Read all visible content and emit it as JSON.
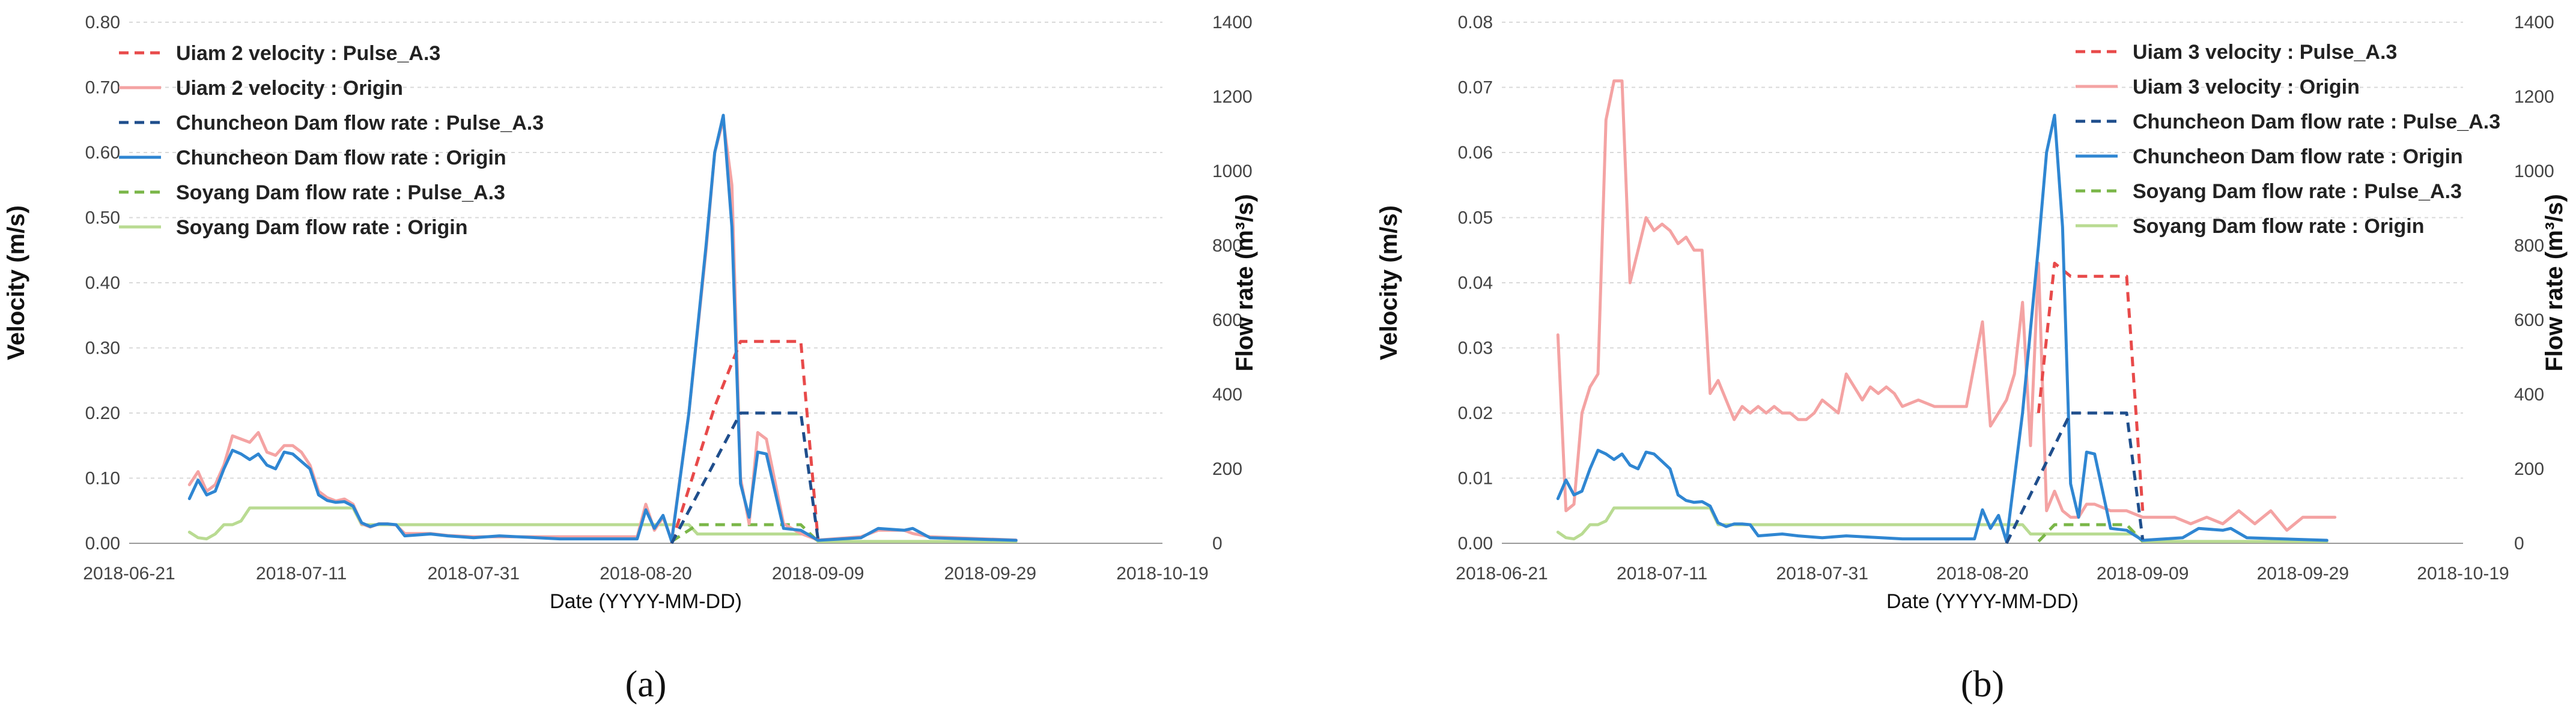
{
  "panel_labels": [
    "(a)",
    "(b)"
  ],
  "colors": {
    "uiam": "#E84A4A",
    "uiam_origin": "#F4A3A3",
    "chuncheon_pulse": "#1F4E8C",
    "chuncheon_origin": "#2F86D2",
    "soyang_pulse": "#7AB648",
    "soyang_origin": "#B9DB92",
    "grid": "#D9D9D9"
  },
  "chart_data": [
    {
      "type": "line",
      "panel": "(a)",
      "xlabel": "Date (YYYY-MM-DD)",
      "ylabel": "Velocity (m/s)",
      "y2label": "Flow rate (m³/s)",
      "xlim": [
        "2018-06-21",
        "2018-10-19"
      ],
      "xticks": [
        "2018-06-21",
        "2018-07-11",
        "2018-07-31",
        "2018-08-20",
        "2018-09-09",
        "2018-09-29",
        "2018-10-19"
      ],
      "ylim": [
        0,
        0.8
      ],
      "yticks": [
        "0.00",
        "0.10",
        "0.20",
        "0.30",
        "0.40",
        "0.50",
        "0.60",
        "0.70",
        "0.80"
      ],
      "y2lim": [
        0,
        1400
      ],
      "y2ticks": [
        "0",
        "200",
        "400",
        "600",
        "800",
        "1000",
        "1200",
        "1400"
      ],
      "grid": true,
      "legend_position": "top-left",
      "series": [
        {
          "name": "Uiam 2 velocity : Pulse_A.3",
          "axis": "left",
          "style": "dashed",
          "color_key": "uiam",
          "x": [
            "2018-08-23",
            "2018-08-28",
            "2018-08-31",
            "2018-09-07",
            "2018-09-09"
          ],
          "y": [
            0.0,
            0.21,
            0.31,
            0.31,
            0.005
          ]
        },
        {
          "name": "Uiam 2 velocity : Origin",
          "axis": "left",
          "style": "solid",
          "color_key": "uiam_origin",
          "x": [
            "2018-06-28",
            "2018-06-29",
            "2018-06-30",
            "2018-07-01",
            "2018-07-02",
            "2018-07-03",
            "2018-07-04",
            "2018-07-05",
            "2018-07-06",
            "2018-07-07",
            "2018-07-08",
            "2018-07-09",
            "2018-07-10",
            "2018-07-11",
            "2018-07-12",
            "2018-07-13",
            "2018-07-14",
            "2018-07-15",
            "2018-07-16",
            "2018-07-17",
            "2018-07-18",
            "2018-07-19",
            "2018-07-20",
            "2018-07-21",
            "2018-07-22",
            "2018-07-23",
            "2018-07-26",
            "2018-07-28",
            "2018-07-31",
            "2018-08-03",
            "2018-08-10",
            "2018-08-15",
            "2018-08-19",
            "2018-08-20",
            "2018-08-21",
            "2018-08-22",
            "2018-08-23",
            "2018-08-25",
            "2018-08-27",
            "2018-08-28",
            "2018-08-29",
            "2018-08-30",
            "2018-08-31",
            "2018-09-01",
            "2018-09-02",
            "2018-09-03",
            "2018-09-05",
            "2018-09-07",
            "2018-09-09",
            "2018-09-14",
            "2018-09-16",
            "2018-09-19",
            "2018-09-20",
            "2018-09-22",
            "2018-10-02"
          ],
          "y": [
            0.09,
            0.11,
            0.08,
            0.09,
            0.12,
            0.165,
            0.16,
            0.155,
            0.17,
            0.14,
            0.135,
            0.15,
            0.15,
            0.14,
            0.12,
            0.08,
            0.07,
            0.065,
            0.068,
            0.06,
            0.03,
            0.025,
            0.03,
            0.03,
            0.028,
            0.015,
            0.015,
            0.012,
            0.01,
            0.01,
            0.01,
            0.01,
            0.01,
            0.06,
            0.02,
            0.04,
            0.005,
            0.2,
            0.45,
            0.6,
            0.65,
            0.55,
            0.1,
            0.03,
            0.17,
            0.16,
            0.03,
            0.015,
            0.005,
            0.01,
            0.02,
            0.02,
            0.015,
            0.01,
            0.005
          ]
        },
        {
          "name": "Chuncheon Dam flow rate : Pulse_A.3",
          "axis": "right",
          "style": "dashed",
          "color_key": "chuncheon_pulse",
          "x": [
            "2018-08-23",
            "2018-08-31",
            "2018-09-07",
            "2018-09-09"
          ],
          "y": [
            0,
            350,
            350,
            10
          ]
        },
        {
          "name": "Chuncheon Dam flow rate : Origin",
          "axis": "right",
          "style": "solid",
          "color_key": "chuncheon_origin",
          "x": [
            "2018-06-28",
            "2018-06-29",
            "2018-06-30",
            "2018-07-01",
            "2018-07-02",
            "2018-07-03",
            "2018-07-04",
            "2018-07-05",
            "2018-07-06",
            "2018-07-07",
            "2018-07-08",
            "2018-07-09",
            "2018-07-10",
            "2018-07-11",
            "2018-07-12",
            "2018-07-13",
            "2018-07-14",
            "2018-07-15",
            "2018-07-16",
            "2018-07-17",
            "2018-07-18",
            "2018-07-19",
            "2018-07-20",
            "2018-07-21",
            "2018-07-22",
            "2018-07-23",
            "2018-07-26",
            "2018-07-28",
            "2018-07-31",
            "2018-08-03",
            "2018-08-10",
            "2018-08-15",
            "2018-08-19",
            "2018-08-20",
            "2018-08-21",
            "2018-08-22",
            "2018-08-23",
            "2018-08-25",
            "2018-08-27",
            "2018-08-28",
            "2018-08-29",
            "2018-08-30",
            "2018-08-31",
            "2018-09-01",
            "2018-09-02",
            "2018-09-03",
            "2018-09-05",
            "2018-09-07",
            "2018-09-09",
            "2018-09-14",
            "2018-09-16",
            "2018-09-19",
            "2018-09-20",
            "2018-09-22",
            "2018-10-02"
          ],
          "y": [
            120,
            170,
            130,
            140,
            200,
            250,
            240,
            225,
            240,
            210,
            200,
            245,
            240,
            220,
            200,
            130,
            115,
            110,
            112,
            100,
            55,
            45,
            52,
            52,
            50,
            20,
            25,
            20,
            15,
            20,
            12,
            12,
            12,
            90,
            40,
            75,
            5,
            350,
            800,
            1050,
            1150,
            850,
            160,
            70,
            245,
            240,
            40,
            35,
            8,
            15,
            40,
            35,
            40,
            15,
            8
          ]
        },
        {
          "name": "Soyang Dam flow rate : Pulse_A.3",
          "axis": "right",
          "style": "dashed",
          "color_key": "soyang_pulse",
          "x": [
            "2018-08-23",
            "2018-08-26",
            "2018-09-07",
            "2018-09-09"
          ],
          "y": [
            5,
            50,
            50,
            5
          ]
        },
        {
          "name": "Soyang Dam flow rate : Origin",
          "axis": "right",
          "style": "solid",
          "color_key": "soyang_origin",
          "x": [
            "2018-06-28",
            "2018-06-29",
            "2018-06-30",
            "2018-07-01",
            "2018-07-02",
            "2018-07-03",
            "2018-07-04",
            "2018-07-05",
            "2018-07-17",
            "2018-07-18",
            "2018-07-25",
            "2018-08-25",
            "2018-08-26",
            "2018-08-27",
            "2018-09-08",
            "2018-09-09",
            "2018-10-02"
          ],
          "y": [
            30,
            15,
            12,
            25,
            50,
            50,
            60,
            95,
            95,
            50,
            50,
            50,
            25,
            25,
            25,
            5,
            5
          ]
        }
      ]
    },
    {
      "type": "line",
      "panel": "(b)",
      "xlabel": "Date (YYYY-MM-DD)",
      "ylabel": "Velocity (m/s)",
      "y2label": "Flow rate (m³/s)",
      "xlim": [
        "2018-06-21",
        "2018-10-19"
      ],
      "xticks": [
        "2018-06-21",
        "2018-07-11",
        "2018-07-31",
        "2018-08-20",
        "2018-09-09",
        "2018-09-29",
        "2018-10-19"
      ],
      "ylim": [
        0,
        0.08
      ],
      "yticks": [
        "0.00",
        "0.01",
        "0.02",
        "0.03",
        "0.04",
        "0.05",
        "0.06",
        "0.07",
        "0.08"
      ],
      "y2lim": [
        0,
        1400
      ],
      "y2ticks": [
        "0",
        "200",
        "400",
        "600",
        "800",
        "1000",
        "1200",
        "1400"
      ],
      "grid": true,
      "legend_position": "top-right",
      "series": [
        {
          "name": "Uiam 3 velocity : Pulse_A.3",
          "axis": "left",
          "style": "dashed",
          "color_key": "uiam",
          "x": [
            "2018-08-27",
            "2018-08-29",
            "2018-08-31",
            "2018-09-07",
            "2018-09-09"
          ],
          "y": [
            0.02,
            0.043,
            0.041,
            0.041,
            0.005
          ]
        },
        {
          "name": "Uiam 3 velocity : Origin",
          "axis": "left",
          "style": "solid",
          "color_key": "uiam_origin",
          "x": [
            "2018-06-28",
            "2018-06-29",
            "2018-06-30",
            "2018-07-01",
            "2018-07-02",
            "2018-07-03",
            "2018-07-04",
            "2018-07-05",
            "2018-07-06",
            "2018-07-07",
            "2018-07-08",
            "2018-07-09",
            "2018-07-10",
            "2018-07-11",
            "2018-07-12",
            "2018-07-13",
            "2018-07-14",
            "2018-07-15",
            "2018-07-16",
            "2018-07-17",
            "2018-07-18",
            "2018-07-19",
            "2018-07-20",
            "2018-07-21",
            "2018-07-22",
            "2018-07-23",
            "2018-07-24",
            "2018-07-25",
            "2018-07-26",
            "2018-07-27",
            "2018-07-28",
            "2018-07-29",
            "2018-07-30",
            "2018-07-31",
            "2018-08-01",
            "2018-08-02",
            "2018-08-03",
            "2018-08-05",
            "2018-08-06",
            "2018-08-07",
            "2018-08-08",
            "2018-08-09",
            "2018-08-10",
            "2018-08-12",
            "2018-08-14",
            "2018-08-16",
            "2018-08-18",
            "2018-08-20",
            "2018-08-21",
            "2018-08-22",
            "2018-08-23",
            "2018-08-24",
            "2018-08-25",
            "2018-08-26",
            "2018-08-27",
            "2018-08-28",
            "2018-08-29",
            "2018-08-30",
            "2018-08-31",
            "2018-09-01",
            "2018-09-02",
            "2018-09-03",
            "2018-09-05",
            "2018-09-07",
            "2018-09-09",
            "2018-09-11",
            "2018-09-13",
            "2018-09-15",
            "2018-09-17",
            "2018-09-19",
            "2018-09-21",
            "2018-09-23",
            "2018-09-25",
            "2018-09-27",
            "2018-09-29",
            "2018-10-01",
            "2018-10-03"
          ],
          "y": [
            0.032,
            0.005,
            0.006,
            0.02,
            0.024,
            0.026,
            0.065,
            0.071,
            0.071,
            0.04,
            0.045,
            0.05,
            0.048,
            0.049,
            0.048,
            0.046,
            0.047,
            0.045,
            0.045,
            0.023,
            0.025,
            0.022,
            0.019,
            0.021,
            0.02,
            0.021,
            0.02,
            0.021,
            0.02,
            0.02,
            0.019,
            0.019,
            0.02,
            0.022,
            0.021,
            0.02,
            0.026,
            0.022,
            0.024,
            0.023,
            0.024,
            0.023,
            0.021,
            0.022,
            0.021,
            0.021,
            0.021,
            0.034,
            0.018,
            0.02,
            0.022,
            0.026,
            0.037,
            0.015,
            0.043,
            0.005,
            0.008,
            0.005,
            0.004,
            0.004,
            0.006,
            0.006,
            0.005,
            0.005,
            0.004,
            0.004,
            0.004,
            0.003,
            0.004,
            0.003,
            0.005,
            0.003,
            0.005,
            0.002,
            0.004,
            0.004,
            0.004
          ]
        },
        {
          "name": "Chuncheon Dam flow rate : Pulse_A.3",
          "axis": "right",
          "style": "dashed",
          "color_key": "chuncheon_pulse",
          "x": [
            "2018-08-23",
            "2018-08-31",
            "2018-09-07",
            "2018-09-09"
          ],
          "y": [
            0,
            350,
            350,
            10
          ]
        },
        {
          "name": "Chuncheon Dam flow rate : Origin",
          "axis": "right",
          "style": "solid",
          "color_key": "chuncheon_origin",
          "x": [
            "2018-06-28",
            "2018-06-29",
            "2018-06-30",
            "2018-07-01",
            "2018-07-02",
            "2018-07-03",
            "2018-07-04",
            "2018-07-05",
            "2018-07-06",
            "2018-07-07",
            "2018-07-08",
            "2018-07-09",
            "2018-07-10",
            "2018-07-11",
            "2018-07-12",
            "2018-07-13",
            "2018-07-14",
            "2018-07-15",
            "2018-07-16",
            "2018-07-17",
            "2018-07-18",
            "2018-07-19",
            "2018-07-20",
            "2018-07-21",
            "2018-07-22",
            "2018-07-23",
            "2018-07-26",
            "2018-07-28",
            "2018-07-31",
            "2018-08-03",
            "2018-08-10",
            "2018-08-15",
            "2018-08-19",
            "2018-08-20",
            "2018-08-21",
            "2018-08-22",
            "2018-08-23",
            "2018-08-25",
            "2018-08-27",
            "2018-08-28",
            "2018-08-29",
            "2018-08-30",
            "2018-08-31",
            "2018-09-01",
            "2018-09-02",
            "2018-09-03",
            "2018-09-05",
            "2018-09-07",
            "2018-09-09",
            "2018-09-14",
            "2018-09-16",
            "2018-09-19",
            "2018-09-20",
            "2018-09-22",
            "2018-10-02"
          ],
          "y": [
            120,
            170,
            130,
            140,
            200,
            250,
            240,
            225,
            240,
            210,
            200,
            245,
            240,
            220,
            200,
            130,
            115,
            110,
            112,
            100,
            55,
            45,
            52,
            52,
            50,
            20,
            25,
            20,
            15,
            20,
            12,
            12,
            12,
            90,
            40,
            75,
            5,
            350,
            800,
            1050,
            1150,
            850,
            160,
            70,
            245,
            240,
            40,
            35,
            8,
            15,
            40,
            35,
            40,
            15,
            8
          ]
        },
        {
          "name": "Soyang Dam flow rate : Pulse_A.3",
          "axis": "right",
          "style": "dashed",
          "color_key": "soyang_pulse",
          "x": [
            "2018-08-27",
            "2018-08-29",
            "2018-09-07",
            "2018-09-09"
          ],
          "y": [
            5,
            50,
            50,
            5
          ]
        },
        {
          "name": "Soyang Dam flow rate : Origin",
          "axis": "right",
          "style": "solid",
          "color_key": "soyang_origin",
          "x": [
            "2018-06-28",
            "2018-06-29",
            "2018-06-30",
            "2018-07-01",
            "2018-07-02",
            "2018-07-03",
            "2018-07-04",
            "2018-07-05",
            "2018-07-17",
            "2018-07-18",
            "2018-07-25",
            "2018-08-25",
            "2018-08-26",
            "2018-08-27",
            "2018-09-08",
            "2018-09-09",
            "2018-10-02"
          ],
          "y": [
            30,
            15,
            12,
            25,
            50,
            50,
            60,
            95,
            95,
            50,
            50,
            50,
            25,
            25,
            25,
            5,
            5
          ]
        }
      ]
    }
  ]
}
